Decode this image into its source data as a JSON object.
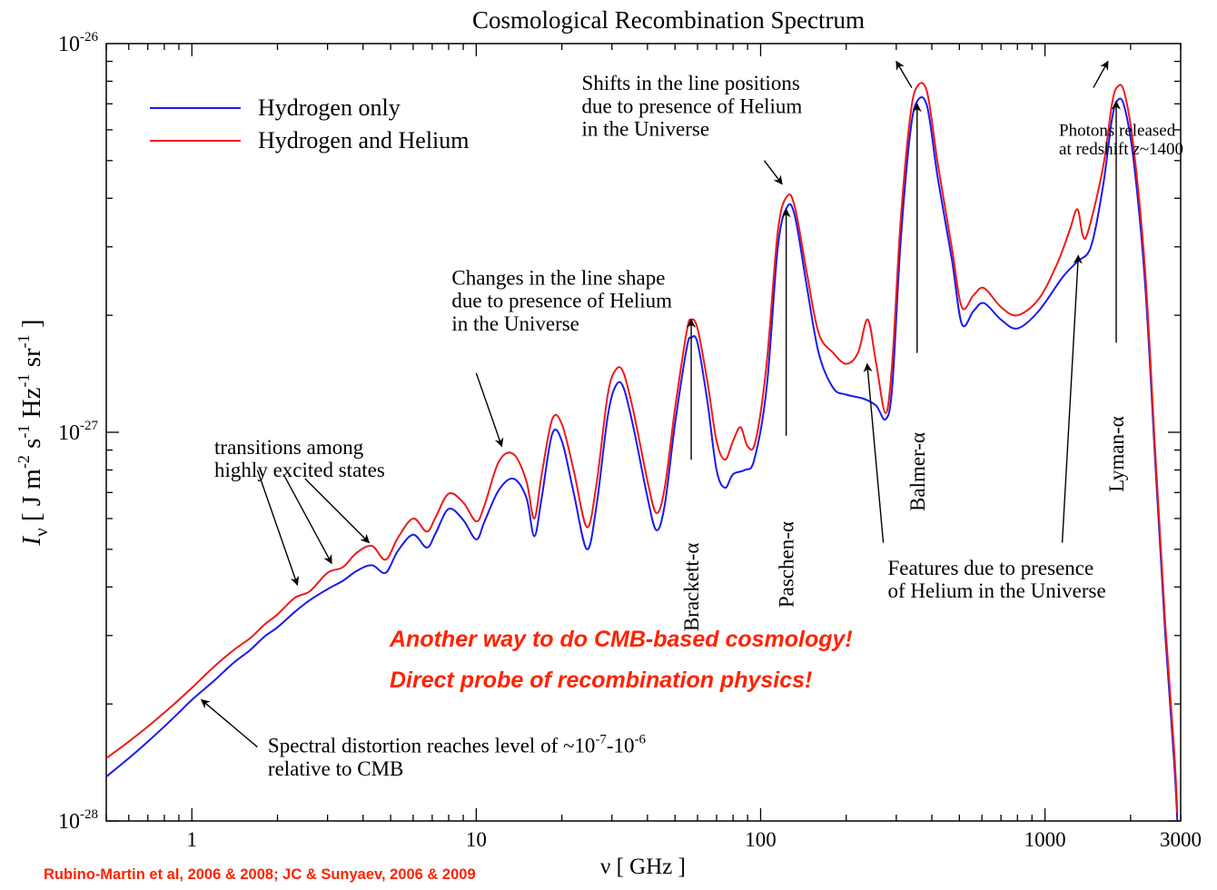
{
  "chart_data": {
    "type": "line",
    "title": "Cosmological Recombination Spectrum",
    "xlabel": "ν [ GHz ]",
    "ylabel_symbol": "I",
    "ylabel_sub": "ν",
    "ylabel_units": "[ J m^-2 s^-1 Hz^-1 sr^-1 ]",
    "x_scale": "log",
    "y_scale": "log",
    "xlim": [
      0.5,
      3000
    ],
    "ylim": [
      1e-28,
      1e-26
    ],
    "grid": false,
    "legend_position": "top-left",
    "x_ticks": [
      {
        "value": 1,
        "label": "1"
      },
      {
        "value": 10,
        "label": "10"
      },
      {
        "value": 100,
        "label": "100"
      },
      {
        "value": 1000,
        "label": "1000"
      },
      {
        "value": 3000,
        "label": "3000"
      }
    ],
    "y_ticks": [
      {
        "value": 1e-28,
        "base": "10",
        "exp": "-28"
      },
      {
        "value": 1e-27,
        "base": "10",
        "exp": "-27"
      },
      {
        "value": 1e-26,
        "base": "10",
        "exp": "-26"
      }
    ],
    "series": [
      {
        "name": "Hydrogen only",
        "color": "#1a1aee",
        "points": [
          [
            0.5,
            1.3e-28
          ],
          [
            0.6,
            1.45e-28
          ],
          [
            0.7,
            1.6e-28
          ],
          [
            0.8,
            1.75e-28
          ],
          [
            0.9,
            1.9e-28
          ],
          [
            1.0,
            2.05e-28
          ],
          [
            1.2,
            2.3e-28
          ],
          [
            1.4,
            2.55e-28
          ],
          [
            1.6,
            2.75e-28
          ],
          [
            1.8,
            2.98e-28
          ],
          [
            2.0,
            3.15e-28
          ],
          [
            2.3,
            3.45e-28
          ],
          [
            2.6,
            3.7e-28
          ],
          [
            3.0,
            3.95e-28
          ],
          [
            3.4,
            4.15e-28
          ],
          [
            3.8,
            4.4e-28
          ],
          [
            4.3,
            4.55e-28
          ],
          [
            4.8,
            4.35e-28
          ],
          [
            5.3,
            4.95e-28
          ],
          [
            6.0,
            5.45e-28
          ],
          [
            6.7,
            5.05e-28
          ],
          [
            7.2,
            5.5e-28
          ],
          [
            8.0,
            6.35e-28
          ],
          [
            9.0,
            5.95e-28
          ],
          [
            10.0,
            5.3e-28
          ],
          [
            10.7,
            5.9e-28
          ],
          [
            12.0,
            7.1e-28
          ],
          [
            13.5,
            7.6e-28
          ],
          [
            15.0,
            6.8e-28
          ],
          [
            16.0,
            5.4e-28
          ],
          [
            17.0,
            6.8e-28
          ],
          [
            18.5,
            9.9e-28
          ],
          [
            20.0,
            9.5e-28
          ],
          [
            22.0,
            7e-28
          ],
          [
            24.5,
            5e-28
          ],
          [
            26.5,
            6.5e-28
          ],
          [
            29.0,
            1.1e-27
          ],
          [
            31.0,
            1.32e-27
          ],
          [
            33.0,
            1.3e-27
          ],
          [
            36.0,
            1e-27
          ],
          [
            40.0,
            6.8e-28
          ],
          [
            43.0,
            5.6e-28
          ],
          [
            46.0,
            6.5e-28
          ],
          [
            50.0,
            1.05e-27
          ],
          [
            55.0,
            1.65e-27
          ],
          [
            57.0,
            1.75e-27
          ],
          [
            60.0,
            1.7e-27
          ],
          [
            65.0,
            1.2e-27
          ],
          [
            70.0,
            8e-28
          ],
          [
            75.0,
            7.2e-28
          ],
          [
            80.0,
            7.8e-28
          ],
          [
            88.0,
            8e-28
          ],
          [
            95.0,
            8.5e-28
          ],
          [
            105.0,
            1.3e-27
          ],
          [
            115.0,
            3e-27
          ],
          [
            124.0,
            3.8e-27
          ],
          [
            132.0,
            3.6e-27
          ],
          [
            145.0,
            2.4e-27
          ],
          [
            160.0,
            1.6e-27
          ],
          [
            180.0,
            1.3e-27
          ],
          [
            200.0,
            1.25e-27
          ],
          [
            230.0,
            1.22e-27
          ],
          [
            255.0,
            1.17e-27
          ],
          [
            275.0,
            1.08e-27
          ],
          [
            290.0,
            1.3e-27
          ],
          [
            310.0,
            3e-27
          ],
          [
            335.0,
            5.8e-27
          ],
          [
            355.0,
            7.1e-27
          ],
          [
            385.0,
            6.9e-27
          ],
          [
            420.0,
            4.5e-27
          ],
          [
            470.0,
            2.8e-27
          ],
          [
            510.0,
            1.9e-27
          ],
          [
            560.0,
            2.05e-27
          ],
          [
            610.0,
            2.15e-27
          ],
          [
            700.0,
            1.95e-27
          ],
          [
            800.0,
            1.85e-27
          ],
          [
            950.0,
            2.05e-27
          ],
          [
            1150.0,
            2.5e-27
          ],
          [
            1300.0,
            2.75e-27
          ],
          [
            1450.0,
            3e-27
          ],
          [
            1600.0,
            4.3e-27
          ],
          [
            1720.0,
            6.4e-27
          ],
          [
            1800.0,
            7.15e-27
          ],
          [
            1900.0,
            6.9e-27
          ],
          [
            2050.0,
            5e-27
          ],
          [
            2250.0,
            2.4e-27
          ],
          [
            2450.0,
            8e-28
          ],
          [
            2650.0,
            3e-28
          ],
          [
            2850.0,
            1.4e-28
          ],
          [
            2920.0,
            1e-28
          ]
        ]
      },
      {
        "name": "Hydrogen and Helium",
        "color": "#ee1a1a",
        "points": [
          [
            0.5,
            1.45e-28
          ],
          [
            0.6,
            1.6e-28
          ],
          [
            0.7,
            1.75e-28
          ],
          [
            0.8,
            1.9e-28
          ],
          [
            0.9,
            2.05e-28
          ],
          [
            1.0,
            2.2e-28
          ],
          [
            1.2,
            2.5e-28
          ],
          [
            1.4,
            2.75e-28
          ],
          [
            1.6,
            2.95e-28
          ],
          [
            1.8,
            3.2e-28
          ],
          [
            2.0,
            3.4e-28
          ],
          [
            2.3,
            3.75e-28
          ],
          [
            2.6,
            3.9e-28
          ],
          [
            3.0,
            4.35e-28
          ],
          [
            3.4,
            4.5e-28
          ],
          [
            3.8,
            4.9e-28
          ],
          [
            4.3,
            5.1e-28
          ],
          [
            4.8,
            4.7e-28
          ],
          [
            5.3,
            5.35e-28
          ],
          [
            6.0,
            6e-28
          ],
          [
            6.7,
            5.55e-28
          ],
          [
            7.2,
            6.05e-28
          ],
          [
            8.0,
            6.95e-28
          ],
          [
            9.0,
            6.6e-28
          ],
          [
            10.0,
            5.9e-28
          ],
          [
            10.7,
            6.5e-28
          ],
          [
            12.0,
            8.4e-28
          ],
          [
            13.5,
            8.8e-28
          ],
          [
            15.0,
            7.5e-28
          ],
          [
            16.0,
            6e-28
          ],
          [
            17.0,
            7.8e-28
          ],
          [
            18.5,
            1.08e-27
          ],
          [
            20.0,
            1.05e-27
          ],
          [
            22.0,
            8e-28
          ],
          [
            24.5,
            5.7e-28
          ],
          [
            26.5,
            7.4e-28
          ],
          [
            29.0,
            1.25e-27
          ],
          [
            31.0,
            1.45e-27
          ],
          [
            33.0,
            1.42e-27
          ],
          [
            36.0,
            1.1e-27
          ],
          [
            40.0,
            7.5e-28
          ],
          [
            43.0,
            6.2e-28
          ],
          [
            46.0,
            7.2e-28
          ],
          [
            50.0,
            1.15e-27
          ],
          [
            55.0,
            1.82e-27
          ],
          [
            57.0,
            1.95e-27
          ],
          [
            60.0,
            1.85e-27
          ],
          [
            65.0,
            1.35e-27
          ],
          [
            70.0,
            9.5e-28
          ],
          [
            75.0,
            8.5e-28
          ],
          [
            80.0,
            9.5e-28
          ],
          [
            85.0,
            1.03e-27
          ],
          [
            90.0,
            9.2e-28
          ],
          [
            96.0,
            9.5e-28
          ],
          [
            105.0,
            1.5e-27
          ],
          [
            115.0,
            3.3e-27
          ],
          [
            124.0,
            4.05e-27
          ],
          [
            132.0,
            3.8e-27
          ],
          [
            145.0,
            2.6e-27
          ],
          [
            160.0,
            1.8e-27
          ],
          [
            180.0,
            1.6e-27
          ],
          [
            200.0,
            1.5e-27
          ],
          [
            220.0,
            1.6e-27
          ],
          [
            238.0,
            1.95e-27
          ],
          [
            255.0,
            1.5e-27
          ],
          [
            275.0,
            1.12e-27
          ],
          [
            290.0,
            1.5e-27
          ],
          [
            310.0,
            3.4e-27
          ],
          [
            335.0,
            6.4e-27
          ],
          [
            355.0,
            7.75e-27
          ],
          [
            385.0,
            7.5e-27
          ],
          [
            420.0,
            4.9e-27
          ],
          [
            470.0,
            3e-27
          ],
          [
            510.0,
            2.1e-27
          ],
          [
            560.0,
            2.25e-27
          ],
          [
            610.0,
            2.35e-27
          ],
          [
            700.0,
            2.1e-27
          ],
          [
            800.0,
            2e-27
          ],
          [
            950.0,
            2.2e-27
          ],
          [
            1100.0,
            2.7e-27
          ],
          [
            1220.0,
            3.3e-27
          ],
          [
            1300.0,
            3.75e-27
          ],
          [
            1360.0,
            3.2e-27
          ],
          [
            1420.0,
            3.3e-27
          ],
          [
            1600.0,
            4.8e-27
          ],
          [
            1720.0,
            7e-27
          ],
          [
            1800.0,
            7.75e-27
          ],
          [
            1900.0,
            7.5e-27
          ],
          [
            2050.0,
            5.4e-27
          ],
          [
            2250.0,
            2.6e-27
          ],
          [
            2450.0,
            8.5e-28
          ],
          [
            2650.0,
            3.2e-28
          ],
          [
            2850.0,
            1.5e-28
          ],
          [
            2920.0,
            1.05e-28
          ]
        ]
      }
    ],
    "vertical_labels": [
      {
        "text": "Brackett-α",
        "x": 57,
        "y": 5.2e-28,
        "anchor": "end"
      },
      {
        "text": "Paschen-α",
        "x": 123,
        "y": 5.9e-28,
        "anchor": "end"
      },
      {
        "text": "Balmer-α",
        "x": 355,
        "y": 1e-27,
        "anchor": "end"
      },
      {
        "text": "Lyman-α",
        "x": 1780,
        "y": 1.1e-27,
        "anchor": "end"
      }
    ],
    "annotations": [
      {
        "lines": [
          "Shifts in the line positions",
          "due to presence of Helium",
          "in the Universe"
        ],
        "x": 23.5,
        "y": 7.6e-27,
        "size": 23
      },
      {
        "lines": [
          "Photons released",
          "at redshift z~1400"
        ],
        "x": 1120,
        "y": 5.8e-27,
        "size": 19
      },
      {
        "lines": [
          "Changes in the line shape",
          "due to presence of Helium",
          "in the Universe"
        ],
        "x": 8.2,
        "y": 2.4e-27,
        "size": 23
      },
      {
        "lines": [
          "transitions among",
          "highly excited states"
        ],
        "x": 1.2,
        "y": 8.8e-28,
        "size": 23
      },
      {
        "lines": [
          "Features due to presence",
          "of Helium in the Universe"
        ],
        "x": 280,
        "y": 4.3e-28,
        "size": 23
      },
      {
        "lines": [
          "Spectral distortion reaches level of ~10^-7-10^-6",
          "relative to CMB"
        ],
        "x": 1.85,
        "y": 1.5e-28,
        "size": 23
      }
    ],
    "arrows": [
      {
        "from": [
          340,
          7.7e-27
        ],
        "to": [
          300,
          9e-27
        ]
      },
      {
        "from": [
          1480,
          7.7e-27
        ],
        "to": [
          1665,
          9e-27
        ]
      },
      {
        "from": [
          103,
          5e-27
        ],
        "to": [
          119,
          4.35e-27
        ]
      },
      {
        "from": [
          10,
          1.42e-27
        ],
        "to": [
          12.3,
          9.2e-28
        ]
      },
      {
        "from": [
          1.7,
          8e-28
        ],
        "to": [
          2.35,
          4.05e-28
        ]
      },
      {
        "from": [
          2.1,
          7.8e-28
        ],
        "to": [
          3.1,
          4.6e-28
        ]
      },
      {
        "from": [
          2.5,
          7.6e-28
        ],
        "to": [
          4.2,
          5.2e-28
        ]
      },
      {
        "from": [
          57,
          8.5e-28
        ],
        "to": [
          57,
          1.95e-27
        ]
      },
      {
        "from": [
          123,
          9.8e-28
        ],
        "to": [
          123,
          3.75e-27
        ]
      },
      {
        "from": [
          355,
          1.6e-27
        ],
        "to": [
          355,
          7e-27
        ]
      },
      {
        "from": [
          1780,
          1.7e-27
        ],
        "to": [
          1780,
          7.1e-27
        ]
      },
      {
        "from": [
          270,
          5.2e-28
        ],
        "to": [
          237,
          1.5e-27
        ]
      },
      {
        "from": [
          1150,
          5.2e-28
        ],
        "to": [
          1310,
          2.85e-27
        ]
      },
      {
        "from": [
          1.7,
          1.55e-28
        ],
        "to": [
          1.08,
          2.05e-28
        ]
      }
    ]
  },
  "overlay_text": {
    "slogan1": "Another way to do CMB-based cosmology!",
    "slogan2": "Direct probe of recombination physics!",
    "citation": "Rubino-Martin et al, 2006 & 2008; JC & Sunyaev, 2006 & 2009",
    "accent_color": "#ff2200"
  }
}
